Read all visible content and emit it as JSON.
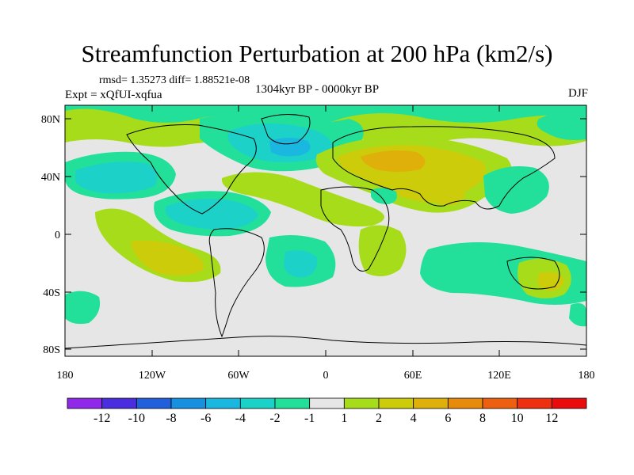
{
  "title": "Streamfunction Perturbation at 200 hPa (km2/s)",
  "stats": "rmsd= 1.35273 diff= 1.88521e-08",
  "experiment": "Expt = xQfUI-xqfua",
  "period": "1304kyr BP - 0000kyr BP",
  "season": "DJF",
  "axes": {
    "lat_ticks": [
      "80N",
      "40N",
      "0",
      "40S",
      "80S"
    ],
    "lon_ticks": [
      "180",
      "120W",
      "60W",
      "0",
      "60E",
      "120E",
      "180"
    ]
  },
  "colorbar": {
    "labels": [
      "-12",
      "-10",
      "-8",
      "-6",
      "-4",
      "-2",
      "-1",
      "1",
      "2",
      "4",
      "6",
      "8",
      "10",
      "12"
    ],
    "colors": [
      "#8f28e8",
      "#4b2de0",
      "#2060dc",
      "#1890e0",
      "#1ab8e0",
      "#1cd2c8",
      "#22e09a",
      "#e6e6e6",
      "#a6dc1a",
      "#cccc0a",
      "#e0b00a",
      "#e88a0c",
      "#ec6010",
      "#ee3010",
      "#e80c0c"
    ]
  },
  "colors": {
    "neutral": "#e6e6e6",
    "green_pos": "#a6dc1a",
    "yellow_pos": "#cccc0a",
    "orange_pos": "#e0b00a",
    "green_neg": "#22e09a",
    "cyan_neg": "#1cd2c8",
    "blue_neg": "#1ab8e0"
  }
}
